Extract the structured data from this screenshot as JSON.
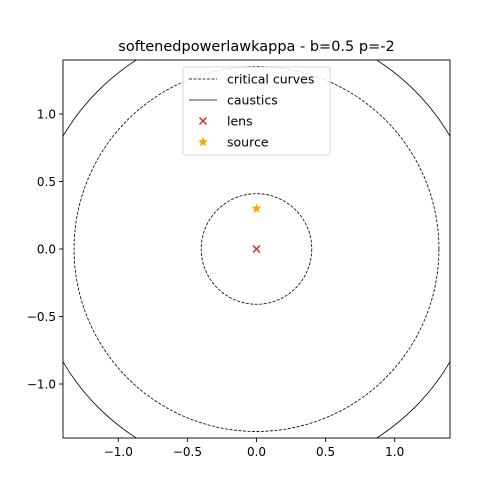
{
  "chart_data": {
    "type": "scatter",
    "title": "softenedpowerlawkappa - b=0.5 p=-2",
    "xlabel": "",
    "ylabel": "",
    "xlim": [
      -1.4,
      1.4
    ],
    "ylim": [
      -1.4,
      1.4
    ],
    "xticks": [
      -1.0,
      -0.5,
      0.0,
      0.5,
      1.0
    ],
    "yticks": [
      -1.0,
      -0.5,
      0.0,
      0.5,
      1.0
    ],
    "xtick_labels": [
      "−1.0",
      "−0.5",
      "0.0",
      "0.5",
      "1.0"
    ],
    "ytick_labels": [
      "−1.0",
      "−0.5",
      "0.0",
      "0.5",
      "1.0"
    ],
    "grid": false,
    "legend_placement": "top-center",
    "series": [
      {
        "name": "critical curves",
        "kind": "circle",
        "style": "dashed",
        "color": "#000000",
        "circles": [
          {
            "cx": 0.0,
            "cy": 0.0,
            "r": 0.4
          },
          {
            "cx": 0.0,
            "cy": 0.0,
            "r": 1.32
          }
        ]
      },
      {
        "name": "caustics",
        "kind": "circle",
        "style": "solid",
        "color": "#000000",
        "circles": [
          {
            "cx": 0.0,
            "cy": 0.0,
            "r": 1.62
          },
          {
            "cx": 0.0,
            "cy": 0.0,
            "r": 0.0
          }
        ]
      },
      {
        "name": "lens",
        "kind": "marker",
        "marker": "x",
        "color": "#d62728",
        "points": [
          {
            "x": 0.0,
            "y": 0.0
          }
        ]
      },
      {
        "name": "source",
        "kind": "marker",
        "marker": "star",
        "color": "#ffa500",
        "points": [
          {
            "x": 0.0,
            "y": 0.3
          }
        ]
      }
    ]
  }
}
